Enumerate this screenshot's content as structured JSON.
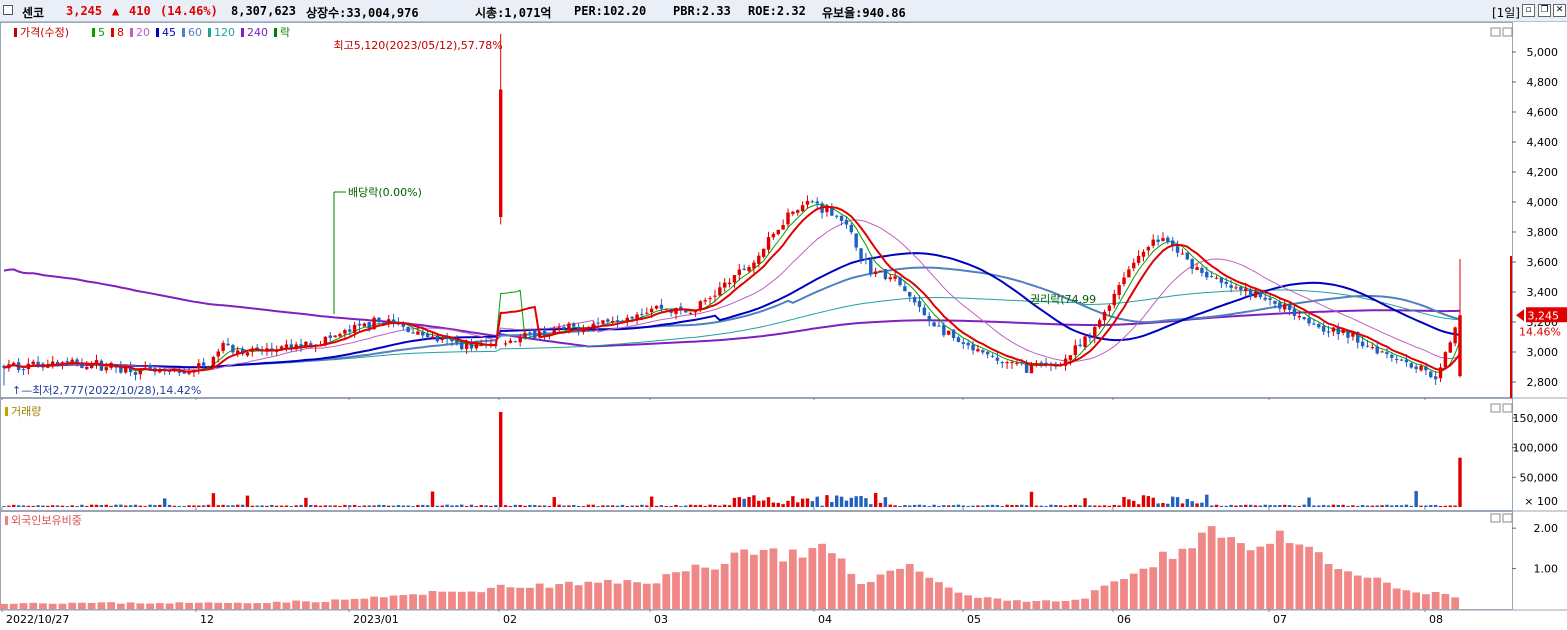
{
  "header": {
    "name": "센코",
    "price": "3,245",
    "change_arrow": "▲",
    "change": "410",
    "change_pct": "(14.46%)",
    "volume": "8,307,623",
    "listed": "상장수:33,004,976",
    "mcap": "시총:1,071억",
    "per": "PER:102.20",
    "pbr": "PBR:2.33",
    "roe": "ROE:2.32",
    "float": "유보율:940.86",
    "period": "[1일]"
  },
  "legend": {
    "items": [
      {
        "label": "가격(수정)",
        "color": "#c00000"
      },
      {
        "label": "5",
        "color": "#00a000"
      },
      {
        "label": "8",
        "color": "#e00000"
      },
      {
        "label": "20",
        "color": "#c060c0"
      },
      {
        "label": "45",
        "color": "#0000c0"
      },
      {
        "label": "60",
        "color": "#5080c0"
      },
      {
        "label": "120",
        "color": "#20a0a0"
      },
      {
        "label": "240",
        "color": "#8020c0"
      },
      {
        "label": "락",
        "color": "#008000"
      }
    ]
  },
  "panels": {
    "volume_label": "거래량",
    "foreign_label": "외국인보유비중"
  },
  "annotations": {
    "high": "최고5,120(2023/05/12),57.78%",
    "low": "최저2,777(2022/10/28),14.42%",
    "dividend": "배당락(0.00%)",
    "rights": "권리락(74.99"
  },
  "price_tag": {
    "value": "3,245",
    "pct": "14.46%"
  },
  "chart_data": {
    "type": "candlestick",
    "x_ticks": [
      "2022/10/27",
      "12",
      "2023/01",
      "02",
      "03",
      "04",
      "05",
      "06",
      "07",
      "08"
    ],
    "price_axis": {
      "ticks": [
        "5,000",
        "4,800",
        "4,600",
        "4,400",
        "4,200",
        "4,000",
        "3,800",
        "3,600",
        "3,400",
        "3,200",
        "3,000",
        "2,800"
      ],
      "range": [
        2700,
        5200
      ]
    },
    "volume_axis": {
      "ticks": [
        "150,000",
        "100,000",
        "50,000",
        "× 100"
      ],
      "range": [
        0,
        1700
      ]
    },
    "foreign_axis": {
      "ticks": [
        "2.00",
        "1.00"
      ],
      "range": [
        0,
        2.4
      ]
    },
    "last_price": 3245
  }
}
